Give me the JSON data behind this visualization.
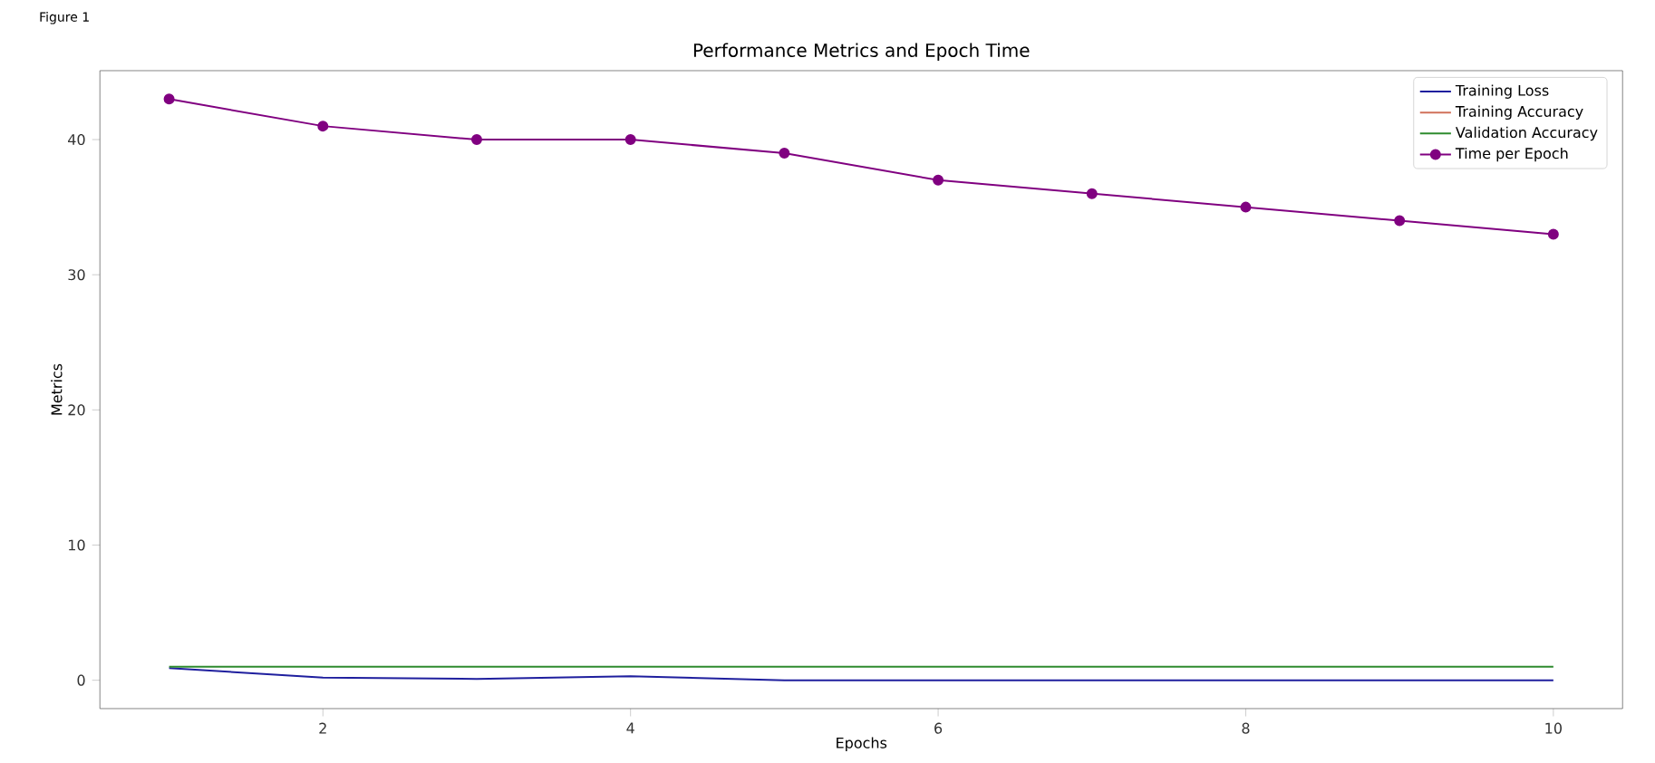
{
  "chart_data": {
    "type": "line",
    "title": "Performance Metrics and Epoch Time",
    "xlabel": "Epochs",
    "ylabel": "Metrics",
    "x": [
      1,
      2,
      3,
      4,
      5,
      6,
      7,
      8,
      9,
      10
    ],
    "series": [
      {
        "name": "Training Loss",
        "color": "#1f1f9e",
        "values": [
          0.9,
          0.2,
          0.1,
          0.3,
          0.0,
          0.0,
          0.0,
          0.0,
          0.0,
          0.0
        ]
      },
      {
        "name": "Training Accuracy",
        "color": "#d0705a",
        "values": [
          null,
          null,
          null,
          null,
          null,
          null,
          null,
          null,
          null,
          null
        ]
      },
      {
        "name": "Validation Accuracy",
        "color": "#2e8b2e",
        "values": [
          1.0,
          1.0,
          1.0,
          1.0,
          1.0,
          1.0,
          1.0,
          1.0,
          1.0,
          1.0
        ]
      },
      {
        "name": "Time per Epoch",
        "color": "#800080",
        "marker": "circle",
        "values": [
          43,
          41,
          40,
          40,
          39,
          37,
          36,
          35,
          34,
          33
        ]
      }
    ],
    "xlim": [
      0.55,
      10.45
    ],
    "ylim": [
      -2.1,
      45.1
    ],
    "xticks": [
      2,
      4,
      6,
      8,
      10
    ],
    "yticks": [
      0,
      10,
      20,
      30,
      40
    ],
    "legend": "top right",
    "grid": false,
    "annotations": [
      "Figure 1"
    ]
  }
}
